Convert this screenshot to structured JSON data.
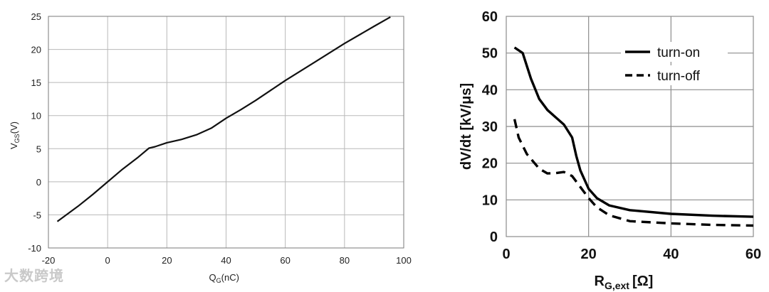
{
  "chart_data": [
    {
      "type": "line",
      "title": "",
      "xlabel": "Q",
      "xlabel_sub": "G",
      "xlabel_unit": "(nC)",
      "ylabel": "V",
      "ylabel_sub": "GS",
      "ylabel_unit": "(V)",
      "xlim": [
        -20,
        100
      ],
      "ylim": [
        -10,
        25
      ],
      "xticks": [
        "-20",
        "0",
        "20",
        "40",
        "60",
        "80",
        "100"
      ],
      "yticks": [
        "25",
        "20",
        "15",
        "10",
        "5",
        "0",
        "-5",
        "-10"
      ],
      "grid": true,
      "series": [
        {
          "x": [
            -17,
            -10,
            -5,
            0,
            5,
            10,
            14,
            16,
            20,
            25,
            30,
            35,
            40,
            45,
            50,
            60,
            70,
            80,
            90,
            95.5
          ],
          "y": [
            -6,
            -3.7,
            -1.9,
            0,
            1.9,
            3.6,
            5.1,
            5.3,
            5.9,
            6.4,
            7.1,
            8.1,
            9.6,
            10.9,
            12.3,
            15.3,
            18.1,
            20.9,
            23.5,
            24.9
          ]
        }
      ]
    },
    {
      "type": "line",
      "title": "",
      "xlabel": "R",
      "xlabel_sub": "G,ext",
      "xlabel_unit": "[Ω]",
      "ylabel": "dV/dt [kV/μs]",
      "xlim": [
        0,
        60
      ],
      "ylim": [
        0,
        60
      ],
      "xticks": [
        "0",
        "20",
        "40",
        "60"
      ],
      "yticks": [
        "60",
        "50",
        "40",
        "30",
        "20",
        "10",
        "0"
      ],
      "grid": true,
      "legend_position": "top-right",
      "series": [
        {
          "name": "turn-on",
          "style": "solid",
          "x": [
            2,
            4,
            6,
            8,
            10,
            12,
            14,
            16,
            17,
            18,
            20,
            22,
            25,
            30,
            40,
            50,
            60
          ],
          "y": [
            51.5,
            50,
            43,
            37.5,
            34.5,
            32.5,
            30.5,
            27,
            22,
            18,
            13,
            10.5,
            8.5,
            7.2,
            6.2,
            5.7,
            5.4
          ]
        },
        {
          "name": "turn-off",
          "style": "dashed",
          "x": [
            2,
            3,
            5,
            8,
            10,
            12,
            14,
            16,
            18,
            20,
            22,
            25,
            30,
            40,
            50,
            60
          ],
          "y": [
            32,
            27,
            22.5,
            18.5,
            17.2,
            17.3,
            17.6,
            16.5,
            13.5,
            10.5,
            8,
            5.8,
            4.2,
            3.6,
            3.2,
            3
          ]
        }
      ]
    }
  ],
  "watermark": "大数跨境"
}
